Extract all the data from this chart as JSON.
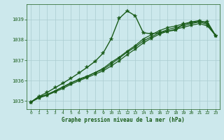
{
  "title": "Graphe pression niveau de la mer (hPa)",
  "background_color": "#cce8ec",
  "grid_color": "#aaccd0",
  "line_color": "#1a5c1a",
  "xlim": [
    -0.5,
    23.5
  ],
  "ylim": [
    1034.6,
    1039.75
  ],
  "xticks": [
    0,
    1,
    2,
    3,
    4,
    5,
    6,
    7,
    8,
    9,
    10,
    11,
    12,
    13,
    14,
    15,
    16,
    17,
    18,
    19,
    20,
    21,
    22,
    23
  ],
  "yticks": [
    1035,
    1036,
    1037,
    1038,
    1039
  ],
  "series": [
    {
      "x": [
        0,
        1,
        2,
        3,
        4,
        5,
        6,
        7,
        8,
        9,
        10,
        11,
        12,
        13,
        14,
        15,
        16,
        17,
        18,
        19,
        20,
        21,
        22,
        23
      ],
      "y": [
        1034.95,
        1035.22,
        1035.3,
        1035.5,
        1035.7,
        1035.9,
        1036.05,
        1036.2,
        1036.4,
        1036.6,
        1036.9,
        1037.15,
        1037.45,
        1037.72,
        1038.05,
        1038.25,
        1038.45,
        1038.6,
        1038.68,
        1038.78,
        1038.88,
        1038.95,
        1038.8,
        1038.22
      ],
      "lw": 0.9,
      "ms": 3.5
    },
    {
      "x": [
        0,
        1,
        2,
        3,
        4,
        5,
        6,
        7,
        8,
        9,
        10,
        11,
        12,
        13,
        14,
        15,
        16,
        17,
        18,
        19,
        20,
        21,
        22,
        23
      ],
      "y": [
        1034.95,
        1035.15,
        1035.28,
        1035.45,
        1035.62,
        1035.82,
        1036.0,
        1036.15,
        1036.32,
        1036.48,
        1036.72,
        1036.98,
        1037.28,
        1037.55,
        1037.85,
        1038.08,
        1038.28,
        1038.42,
        1038.52,
        1038.62,
        1038.72,
        1038.8,
        1038.68,
        1038.22
      ],
      "lw": 0.9,
      "ms": 3.5
    },
    {
      "x": [
        0,
        1,
        2,
        3,
        4,
        5,
        6,
        7,
        8,
        9,
        10,
        11,
        12,
        13,
        14,
        15,
        16,
        17,
        18,
        19,
        20,
        21,
        22,
        23
      ],
      "y": [
        1034.95,
        1035.18,
        1035.32,
        1035.5,
        1035.68,
        1035.88,
        1036.08,
        1036.22,
        1036.4,
        1036.55,
        1036.82,
        1037.1,
        1037.4,
        1037.65,
        1037.95,
        1038.15,
        1038.35,
        1038.5,
        1038.6,
        1038.7,
        1038.8,
        1038.88,
        1038.75,
        1038.22
      ],
      "lw": 0.9,
      "ms": 3.5
    },
    {
      "x": [
        0,
        1,
        2,
        3,
        4,
        5,
        6,
        7,
        8,
        9,
        10,
        11,
        12,
        13,
        14,
        15,
        16,
        17,
        18,
        19,
        20,
        21,
        22,
        23
      ],
      "y": [
        1034.95,
        1035.22,
        1035.42,
        1035.65,
        1035.88,
        1036.12,
        1036.38,
        1036.65,
        1036.95,
        1037.35,
        1038.05,
        1039.05,
        1039.42,
        1039.18,
        1038.35,
        1038.3,
        1038.35,
        1038.42,
        1038.48,
        1038.78,
        1038.85,
        1038.9,
        1038.88,
        1038.22
      ],
      "lw": 1.0,
      "ms": 4.0
    }
  ]
}
